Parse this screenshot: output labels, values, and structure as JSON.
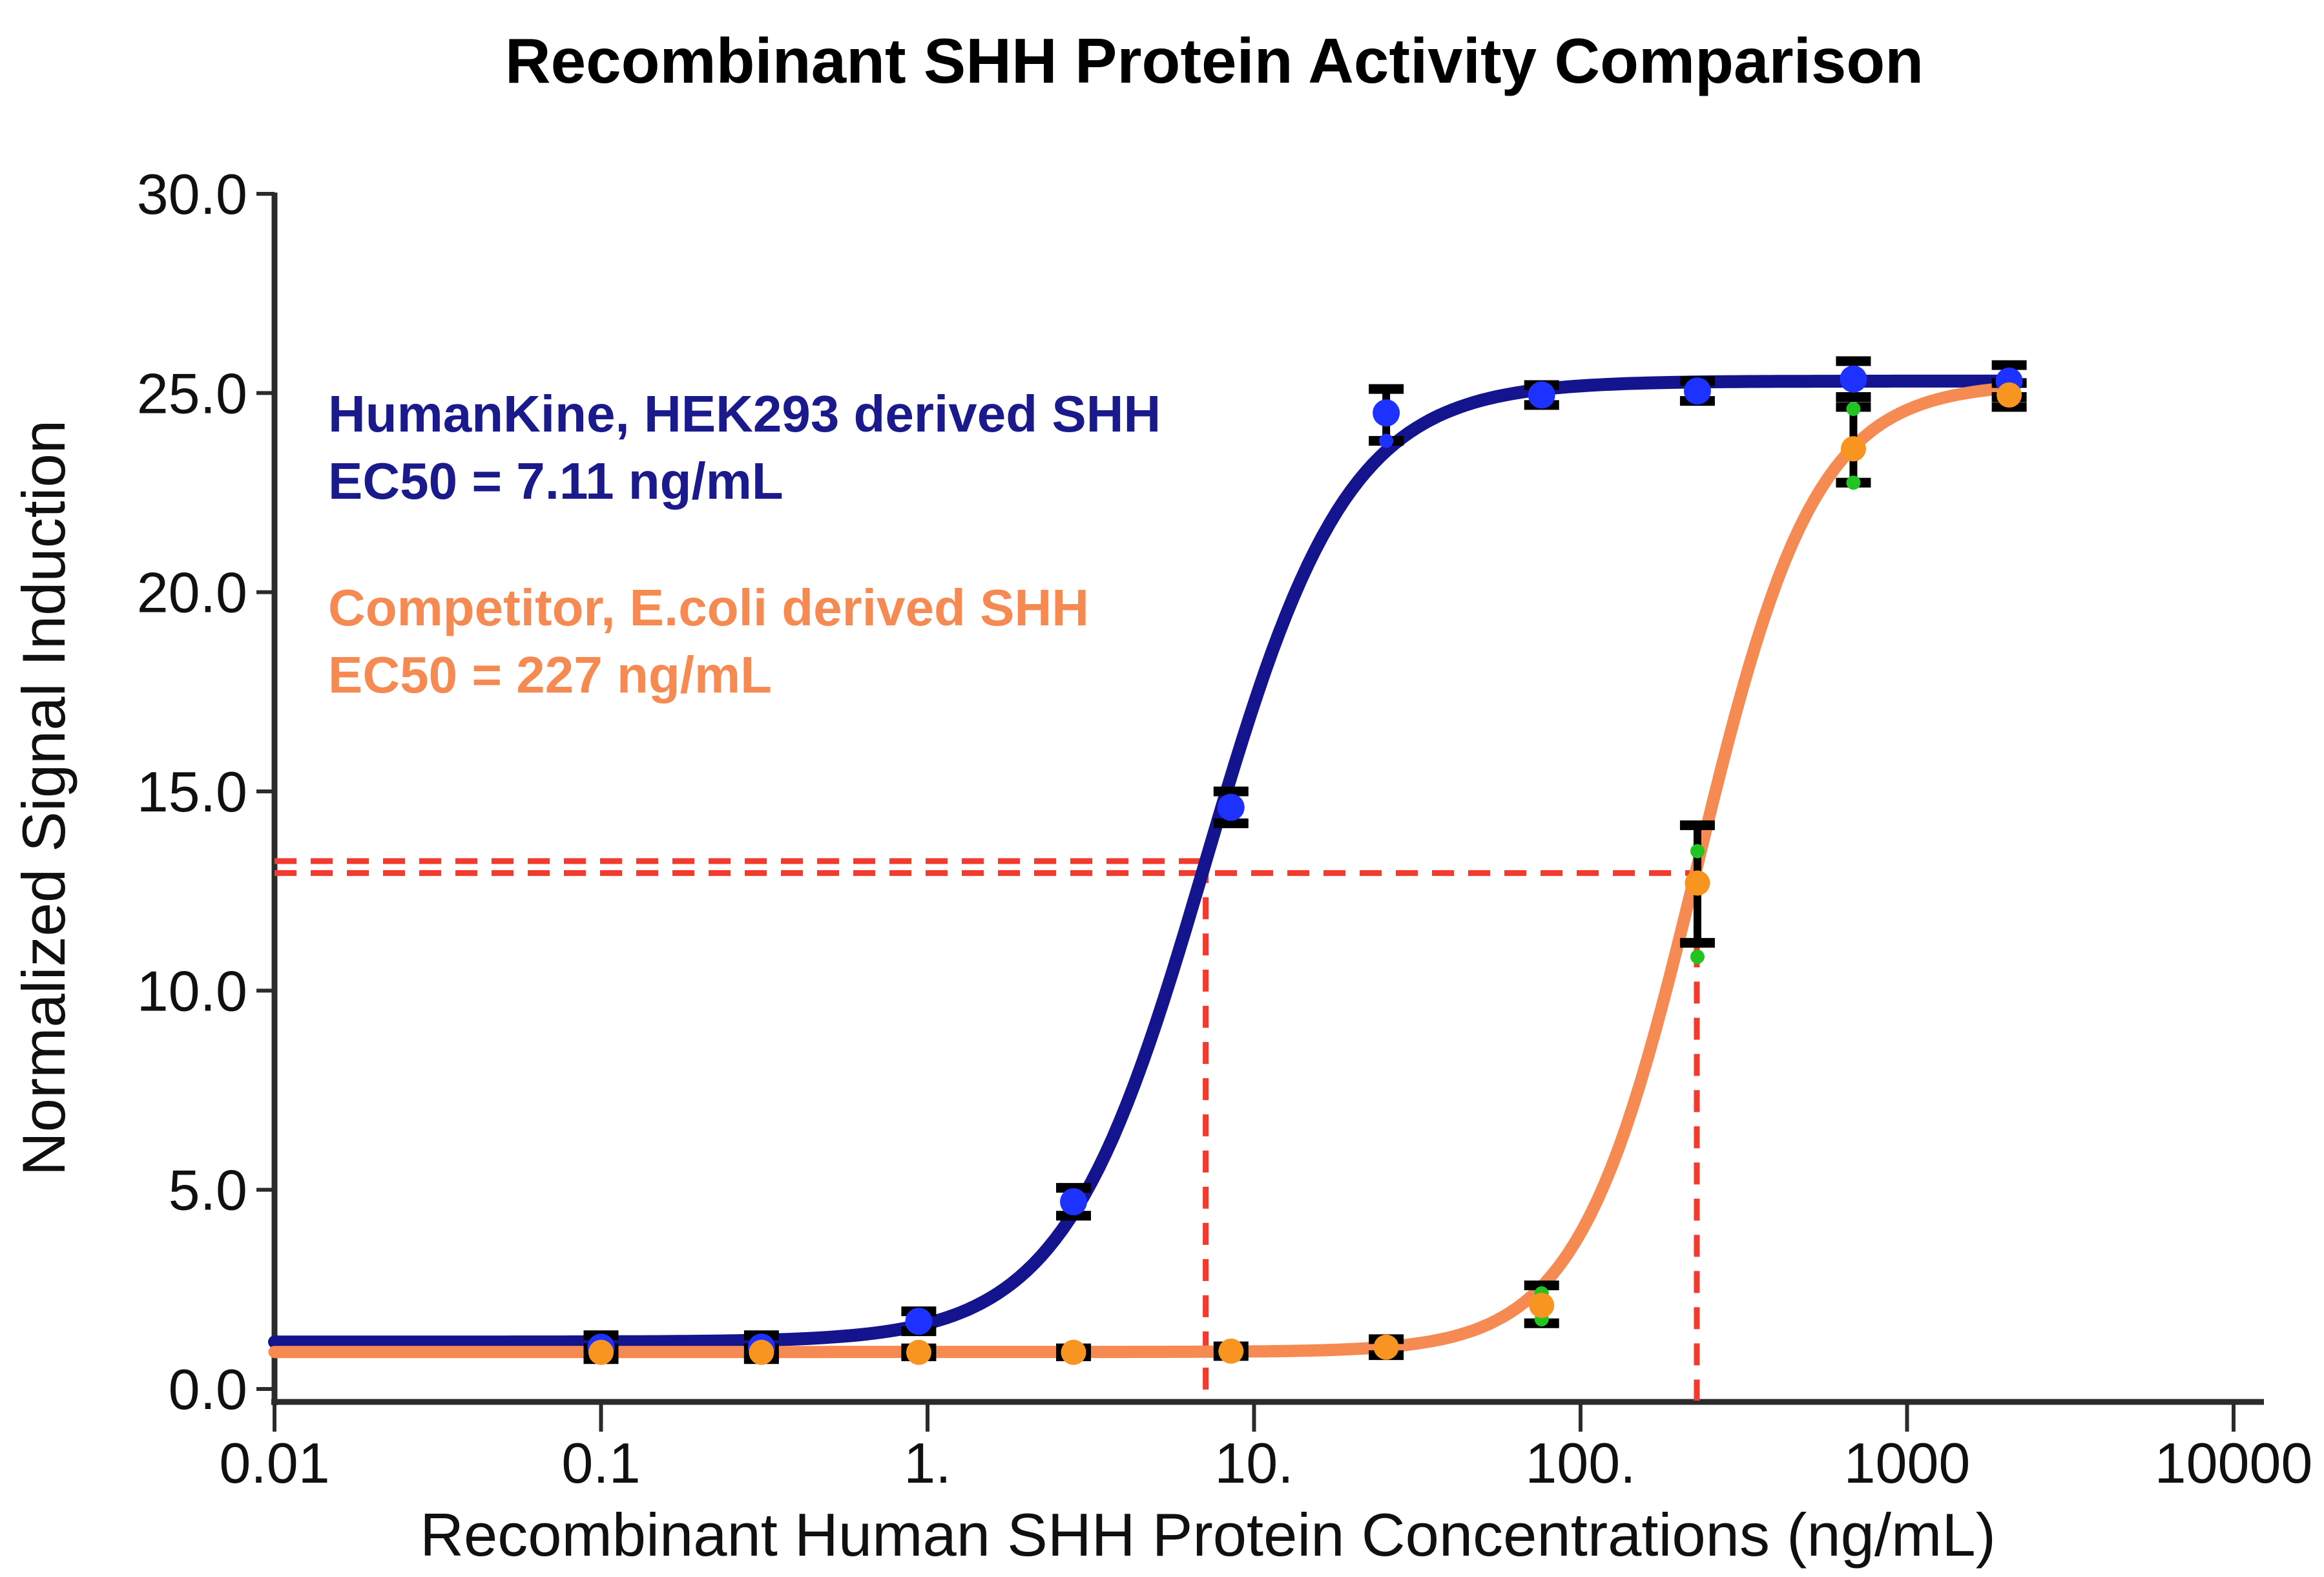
{
  "chart_data": {
    "type": "line",
    "title": "Recombinant SHH Protein Activity Comparison",
    "x_axis": {
      "title": "Recombinant Human SHH Protein Concentrations (ng/mL)",
      "scale": "log10",
      "min": 0.01,
      "max": 10000,
      "ticks": [
        {
          "value": 0.01,
          "label": "0.01"
        },
        {
          "value": 0.1,
          "label": "0.1"
        },
        {
          "value": 1,
          "label": "1."
        },
        {
          "value": 10,
          "label": "10."
        },
        {
          "value": 100,
          "label": "100."
        },
        {
          "value": 1000,
          "label": "1000"
        },
        {
          "value": 10000,
          "label": "10000"
        }
      ]
    },
    "y_axis": {
      "title": "Normalized Signal Induction",
      "scale": "linear",
      "min": 0,
      "max": 30,
      "ticks": [
        {
          "value": 0,
          "label": "0.0"
        },
        {
          "value": 5,
          "label": "5.0"
        },
        {
          "value": 10,
          "label": "10.0"
        },
        {
          "value": 15,
          "label": "15.0"
        },
        {
          "value": 20,
          "label": "20.0"
        },
        {
          "value": 25,
          "label": "25.0"
        },
        {
          "value": 30,
          "label": "30.0"
        }
      ]
    },
    "legend": [
      {
        "line1": "HumanKine, HEK293 derived SHH",
        "line2": "EC50 = 7.11 ng/mL",
        "color": "#1A1A8C"
      },
      {
        "line1": "Competitor, E.coli derived SHH",
        "line2": "EC50 = 227 ng/mL",
        "color": "#F58B52"
      }
    ],
    "series": [
      {
        "name": "HumanKine, HEK293 derived SHH",
        "ec50_ng_ml": 7.11,
        "curve_color": "#14148F",
        "point_color": "#1E32FF",
        "replicate_color": "#1E32FF",
        "x": [
          0.1,
          0.31,
          0.94,
          2.8,
          8.5,
          25.4,
          76,
          228,
          685,
          2055
        ],
        "y": [
          1.05,
          1.05,
          1.7,
          4.7,
          14.6,
          24.5,
          24.95,
          25.05,
          25.35,
          25.3
        ],
        "err_up": [
          0.3,
          0.3,
          0.25,
          0.35,
          0.4,
          0.6,
          0.25,
          0.25,
          0.45,
          0.4
        ],
        "err_down": [
          0.3,
          0.3,
          0.25,
          0.35,
          0.4,
          0.7,
          0.25,
          0.25,
          0.45,
          0.4
        ],
        "replicate_points": [
          {
            "x": 25.4,
            "y": 23.8
          }
        ],
        "fit": {
          "model": "4PL",
          "bottom": 1.18,
          "top": 25.3,
          "ec50": 7.11,
          "hill": 2.0,
          "x_start": 0.01,
          "x_end": 2055
        }
      },
      {
        "name": "Competitor, E.coli derived SHH",
        "ec50_ng_ml": 227,
        "curve_color": "#F58B52",
        "point_color": "#F89420",
        "replicate_color": "#21C421",
        "x": [
          0.1,
          0.31,
          0.94,
          2.8,
          8.5,
          25.4,
          76,
          228,
          685,
          2055
        ],
        "y": [
          0.92,
          0.92,
          0.92,
          0.92,
          0.95,
          1.05,
          2.1,
          12.7,
          23.6,
          24.95
        ],
        "err_up": [
          0.1,
          0.1,
          0.1,
          0.1,
          0.12,
          0.2,
          0.5,
          1.45,
          1.05,
          0.3
        ],
        "err_down": [
          0.1,
          0.1,
          0.1,
          0.1,
          0.12,
          0.2,
          0.45,
          1.5,
          0.85,
          0.3
        ],
        "replicate_points": [
          {
            "x": 76,
            "y": 2.4
          },
          {
            "x": 76,
            "y": 1.75
          },
          {
            "x": 228,
            "y": 13.5
          },
          {
            "x": 228,
            "y": 10.85
          },
          {
            "x": 685,
            "y": 24.6
          },
          {
            "x": 685,
            "y": 22.75
          }
        ],
        "fit": {
          "model": "4PL",
          "bottom": 0.93,
          "top": 25.25,
          "ec50": 227,
          "hill": 2.4,
          "x_start": 0.01,
          "x_end": 2055
        }
      }
    ],
    "guides": {
      "color": "#F23B2E",
      "half_max_lines": [
        {
          "y": 13.25,
          "x_to": 7.11
        },
        {
          "y": 12.95,
          "x_to": 227
        }
      ],
      "ec50_vertical_lines": [
        {
          "x": 7.11
        },
        {
          "x": 227
        }
      ]
    },
    "error_bar_color": "#000000"
  }
}
